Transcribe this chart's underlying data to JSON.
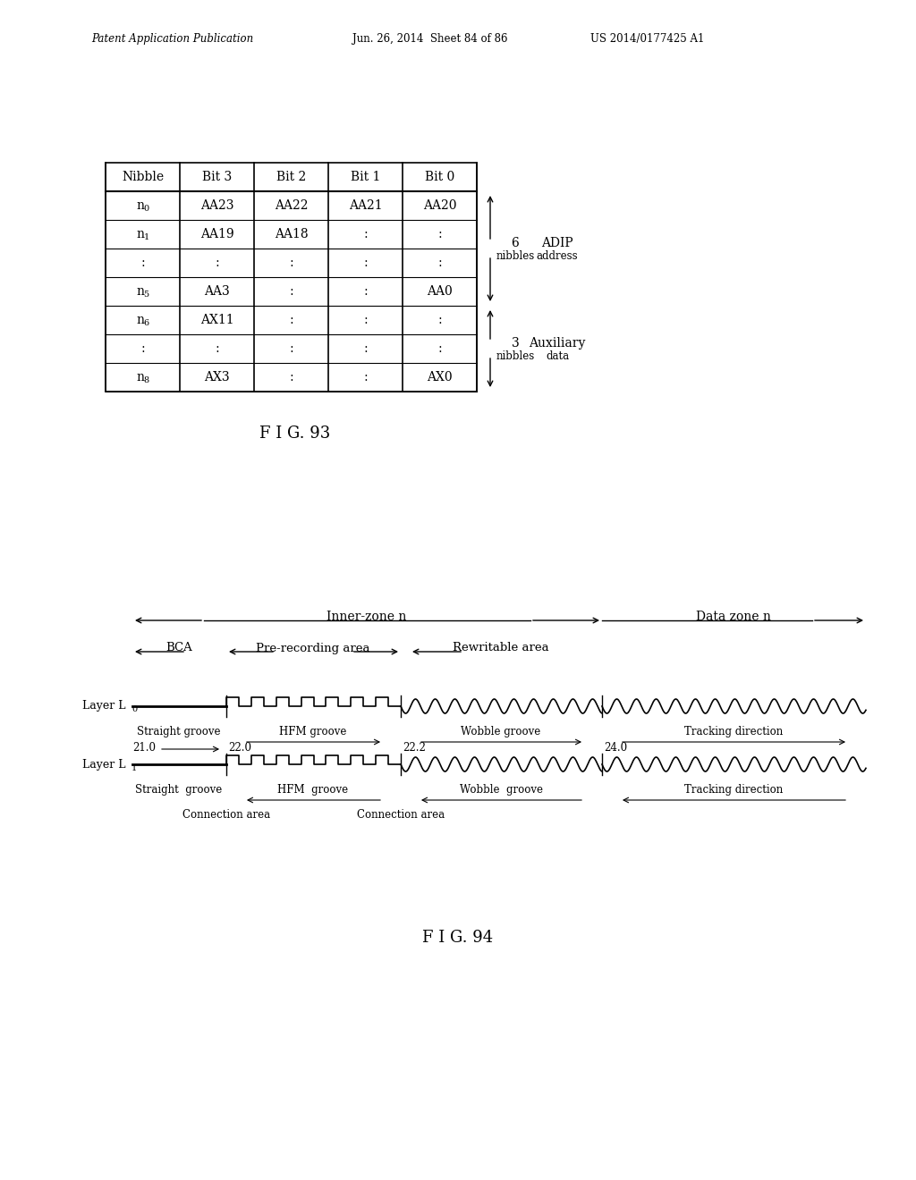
{
  "header_text": "Patent Application Publication",
  "header_date": "Jun. 26, 2014  Sheet 84 of 86",
  "header_patent": "US 2014/0177425 A1",
  "fig93_caption": "F I G. 93",
  "fig94_caption": "F I G. 94",
  "table_headers": [
    "Nibble",
    "Bit 3",
    "Bit 2",
    "Bit 1",
    "Bit 0"
  ],
  "table_rows": [
    [
      "n0",
      "AA23",
      "AA22",
      "AA21",
      "AA20"
    ],
    [
      "n1",
      "AA19",
      "AA18",
      ":",
      ":"
    ],
    [
      ":",
      ":",
      ":",
      ":",
      ":"
    ],
    [
      "n5",
      "AA3",
      ":",
      ":",
      "AA0"
    ],
    [
      "n6",
      "AX11",
      ":",
      ":",
      ":"
    ],
    [
      ":",
      ":",
      ":",
      ":",
      ":"
    ],
    [
      "n8",
      "AX3",
      ":",
      ":",
      "AX0"
    ]
  ],
  "row_subscripts": [
    "0",
    "1",
    "",
    "5",
    "6",
    "",
    "8"
  ],
  "adip_rows": [
    0,
    3
  ],
  "aux_rows": [
    4,
    6
  ]
}
